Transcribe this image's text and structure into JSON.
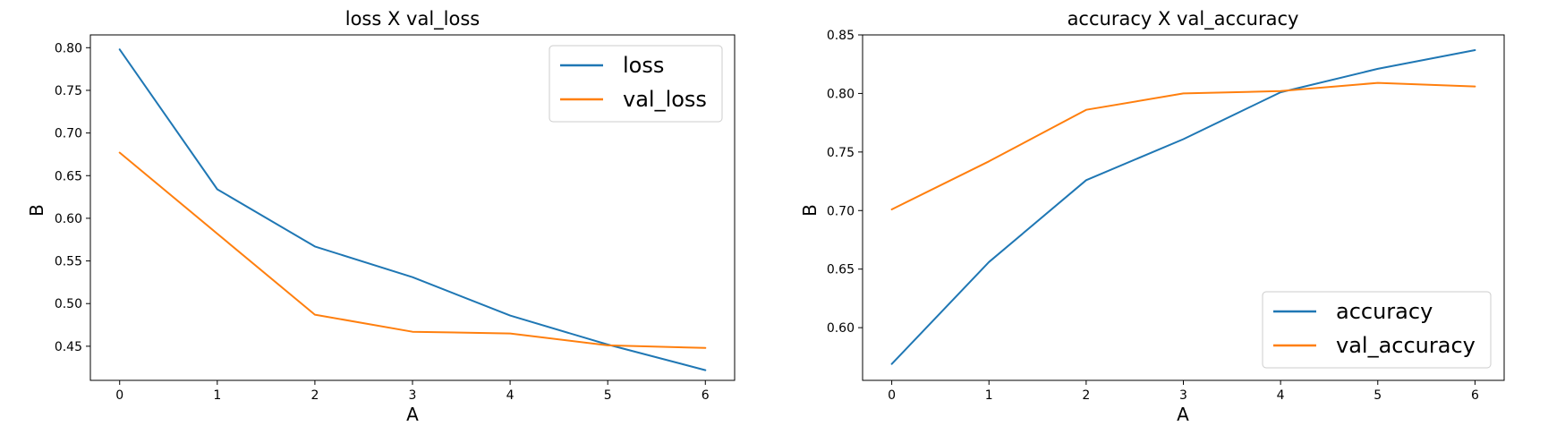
{
  "chart_data": [
    {
      "type": "line",
      "title": "loss X val_loss",
      "xlabel": "A",
      "ylabel": "B",
      "xlim": [
        -0.3,
        6.3
      ],
      "ylim": [
        0.41,
        0.815
      ],
      "xticks": [
        0,
        1,
        2,
        3,
        4,
        5,
        6
      ],
      "yticks": [
        0.45,
        0.5,
        0.55,
        0.6,
        0.65,
        0.7,
        0.75,
        0.8
      ],
      "grid": false,
      "legend_position": "upper right",
      "series": [
        {
          "name": "loss",
          "color": "#1f77b4",
          "x": [
            0,
            1,
            2,
            3,
            4,
            5,
            6
          ],
          "values": [
            0.798,
            0.634,
            0.567,
            0.531,
            0.486,
            0.452,
            0.422
          ]
        },
        {
          "name": "val_loss",
          "color": "#ff7f0e",
          "x": [
            0,
            1,
            2,
            3,
            4,
            5,
            6
          ],
          "values": [
            0.677,
            0.582,
            0.487,
            0.467,
            0.465,
            0.451,
            0.448
          ]
        }
      ]
    },
    {
      "type": "line",
      "title": "accuracy X val_accuracy",
      "xlabel": "A",
      "ylabel": "B",
      "xlim": [
        -0.3,
        6.3
      ],
      "ylim": [
        0.555,
        0.85
      ],
      "xticks": [
        0,
        1,
        2,
        3,
        4,
        5,
        6
      ],
      "yticks": [
        0.6,
        0.65,
        0.7,
        0.75,
        0.8,
        0.85
      ],
      "grid": false,
      "legend_position": "lower right",
      "series": [
        {
          "name": "accuracy",
          "color": "#1f77b4",
          "x": [
            0,
            1,
            2,
            3,
            4,
            5,
            6
          ],
          "values": [
            0.569,
            0.656,
            0.726,
            0.761,
            0.801,
            0.821,
            0.837
          ]
        },
        {
          "name": "val_accuracy",
          "color": "#ff7f0e",
          "x": [
            0,
            1,
            2,
            3,
            4,
            5,
            6
          ],
          "values": [
            0.701,
            0.742,
            0.786,
            0.8,
            0.802,
            0.809,
            0.806
          ]
        }
      ]
    }
  ]
}
